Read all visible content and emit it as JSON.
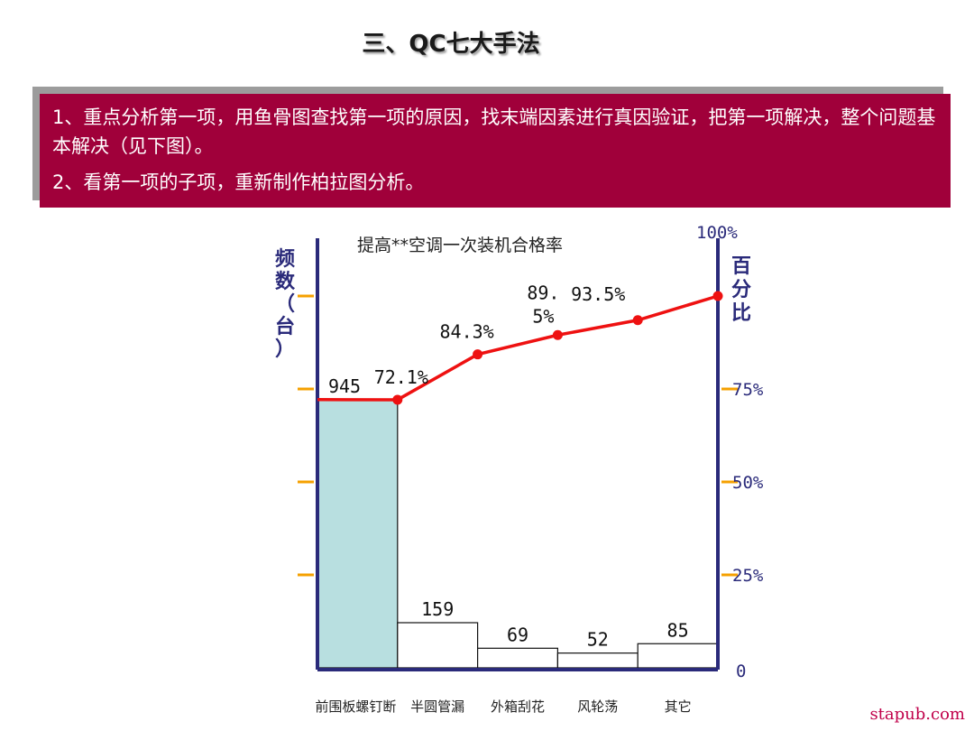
{
  "slide": {
    "title": "三、QC七大手法",
    "points": [
      "1、重点分析第一项，用鱼骨图查找第一项的原因，找末端因素进行真因验证，把第一项解决，整个问题基本解决（见下图）。",
      "2、看第一项的子项，重新制作柏拉图分析。"
    ],
    "banner_color": "#a0003a",
    "watermark": "stapub.com"
  },
  "chart_data": {
    "type": "bar",
    "title": "提高**空调一次装机合格率",
    "ylabel_left": "频数（台）",
    "ylabel_right": "百分比",
    "categories": [
      "前围板螺钉断",
      "半圆管漏",
      "外箱刮花",
      "风轮荡",
      "其它"
    ],
    "values": [
      945,
      159,
      69,
      52,
      85
    ],
    "value_labels": [
      "945",
      "159",
      "69",
      "52",
      "85"
    ],
    "cumulative_percent": [
      72.1,
      84.3,
      89.5,
      93.5,
      100
    ],
    "cumulative_labels": [
      "72.1%",
      "84.3%",
      "89.\n5%",
      "93.5%",
      ""
    ],
    "right_ticks": [
      "100%",
      "75%",
      "50%",
      "25%",
      "0"
    ],
    "right_tick_values": [
      100,
      75,
      50,
      25,
      0
    ],
    "right_ylim": [
      0,
      100
    ],
    "first_bar_color": "#b8dfe0",
    "bar_color": "#ffffff",
    "line_color": "#ee1111",
    "axis_color": "#2a2a7a",
    "tick_color": "#f5a000"
  }
}
